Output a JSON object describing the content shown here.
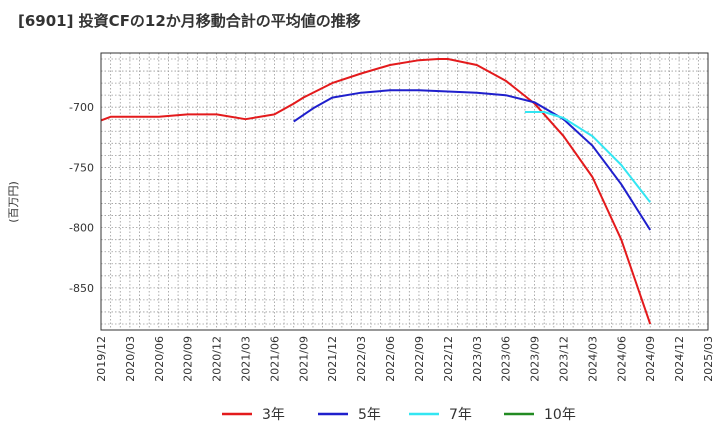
{
  "title": "[6901]  投資CFの12か月移動合計の平均値の推移",
  "chart_data": {
    "type": "line",
    "title": "[6901]  投資CFの12か月移動合計の平均値の推移",
    "xlabel": "",
    "ylabel": "(百万円)",
    "x_ticks": [
      "2019/12",
      "2020/03",
      "2020/06",
      "2020/09",
      "2020/12",
      "2021/03",
      "2021/06",
      "2021/09",
      "2021/12",
      "2022/03",
      "2022/06",
      "2022/09",
      "2022/12",
      "2023/03",
      "2023/06",
      "2023/09",
      "2023/12",
      "2024/03",
      "2024/06",
      "2024/09",
      "2024/12",
      "2025/03"
    ],
    "y_ticks": [
      -700,
      -750,
      -800,
      -850
    ],
    "ylim": [
      -885,
      -655
    ],
    "grid": true,
    "legend_position": "bottom",
    "series": [
      {
        "name": "3年",
        "color": "#e31a1c",
        "points": [
          [
            "2019/12",
            -711
          ],
          [
            "2020/01",
            -708
          ],
          [
            "2020/03",
            -708
          ],
          [
            "2020/06",
            -708
          ],
          [
            "2020/09",
            -706
          ],
          [
            "2020/12",
            -706
          ],
          [
            "2021/03",
            -710
          ],
          [
            "2021/06",
            -706
          ],
          [
            "2021/08",
            -697
          ],
          [
            "2021/09",
            -692
          ],
          [
            "2021/12",
            -680
          ],
          [
            "2022/03",
            -672
          ],
          [
            "2022/06",
            -665
          ],
          [
            "2022/09",
            -661
          ],
          [
            "2022/11",
            -660
          ],
          [
            "2022/12",
            -660
          ],
          [
            "2023/03",
            -665
          ],
          [
            "2023/06",
            -678
          ],
          [
            "2023/09",
            -697
          ],
          [
            "2023/12",
            -724
          ],
          [
            "2024/03",
            -758
          ],
          [
            "2024/06",
            -810
          ],
          [
            "2024/09",
            -880
          ]
        ]
      },
      {
        "name": "5年",
        "color": "#1f1fcc",
        "points": [
          [
            "2021/08",
            -712
          ],
          [
            "2021/10",
            -701
          ],
          [
            "2021/12",
            -692
          ],
          [
            "2022/03",
            -688
          ],
          [
            "2022/06",
            -686
          ],
          [
            "2022/09",
            -686
          ],
          [
            "2022/12",
            -687
          ],
          [
            "2023/03",
            -688
          ],
          [
            "2023/06",
            -690
          ],
          [
            "2023/09",
            -696
          ],
          [
            "2023/12",
            -710
          ],
          [
            "2024/03",
            -732
          ],
          [
            "2024/06",
            -764
          ],
          [
            "2024/09",
            -802
          ]
        ]
      },
      {
        "name": "7年",
        "color": "#33e6f2",
        "points": [
          [
            "2023/08",
            -704
          ],
          [
            "2023/10",
            -704
          ],
          [
            "2023/12",
            -709
          ],
          [
            "2024/03",
            -724
          ],
          [
            "2024/06",
            -748
          ],
          [
            "2024/09",
            -779
          ]
        ]
      },
      {
        "name": "10年",
        "color": "#228b22",
        "points": []
      }
    ]
  }
}
